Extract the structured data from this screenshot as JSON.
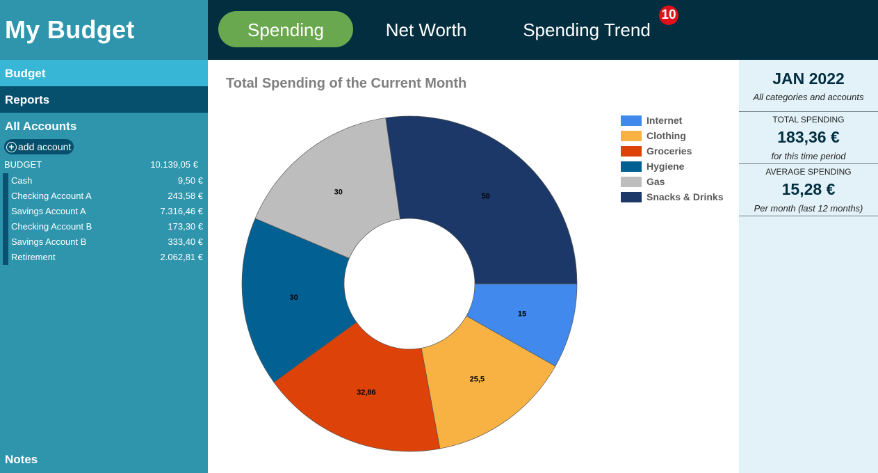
{
  "app": {
    "title": "My Budget"
  },
  "sidebar": {
    "nav": {
      "budget": "Budget",
      "reports": "Reports",
      "all_accounts": "All Accounts"
    },
    "add_account": "add account",
    "summary": {
      "label": "BUDGET",
      "value": "10.139,05 €"
    },
    "accounts": [
      {
        "name": "Cash",
        "value": "9,50 €"
      },
      {
        "name": "Checking Account A",
        "value": "243,58 €"
      },
      {
        "name": "Savings Account A",
        "value": "7.316,46 €"
      },
      {
        "name": "Checking Account B",
        "value": "173,30 €"
      },
      {
        "name": "Savings Account B",
        "value": "333,40 €"
      },
      {
        "name": "Retirement",
        "value": "2.062,81 €"
      }
    ],
    "notes": "Notes"
  },
  "tabs": {
    "spending": "Spending",
    "net_worth": "Net Worth",
    "spending_trend": "Spending Trend",
    "badge": "10"
  },
  "colors": {
    "active_tab": "#6aa84f",
    "topbar": "#022e40",
    "sidebar": "#2e95ad"
  },
  "chart_data": {
    "type": "pie",
    "title": "Total Spending of the Current Month",
    "legend_position": "right",
    "categories": [
      "Internet",
      "Clothing",
      "Groceries",
      "Hygiene",
      "Gas",
      "Snacks & Drinks"
    ],
    "values": [
      15,
      25.5,
      32.86,
      30,
      30,
      50
    ],
    "labels": [
      "15",
      "25,5",
      "32,86",
      "30",
      "30",
      "50"
    ],
    "colors": [
      "#4189ec",
      "#f8b244",
      "#dd4208",
      "#036093",
      "#bdbdbd",
      "#1b3868"
    ],
    "donut": true
  },
  "right_panel": {
    "period": "JAN 2022",
    "period_sub": "All categories and accounts",
    "total_label": "TOTAL SPENDING",
    "total_value": "183,36 €",
    "total_caption": "for this time period",
    "avg_label": "AVERAGE SPENDING",
    "avg_value": "15,28 €",
    "avg_caption": "Per month (last 12 months)"
  }
}
